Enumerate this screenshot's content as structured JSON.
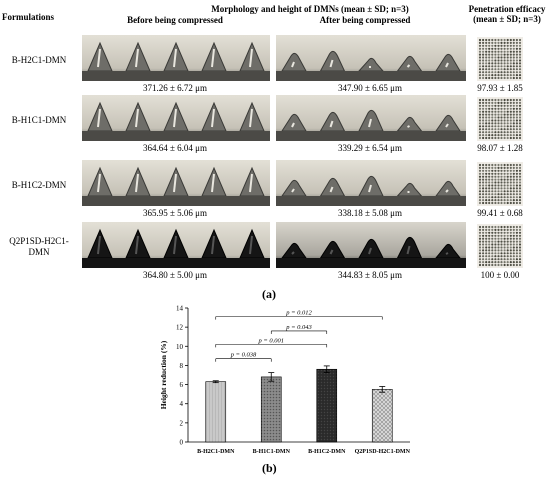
{
  "panel_a": {
    "formulations_header": "Formulations",
    "morph_header": "Morphology and height of DMNs (mean ± SD; n=3)",
    "before_header": "Before being compressed",
    "after_header": "After being compressed",
    "penetration_header_line1": "Penetration efficacy",
    "penetration_header_line2": "(mean ± SD; n=3)",
    "rows": [
      {
        "label_line1": "B-H2C1-DMN",
        "label_line2": "",
        "before": "371.26 ± 6.72 μm",
        "after": "347.90 ± 6.65 μm",
        "penetration": "97.93 ± 1.85"
      },
      {
        "label_line1": "B-H1C1-DMN",
        "label_line2": "",
        "before": "364.64 ± 6.04 μm",
        "after": "339.29 ± 6.54 μm",
        "penetration": "98.07 ± 1.28"
      },
      {
        "label_line1": "B-H1C2-DMN",
        "label_line2": "",
        "before": "365.95 ± 5.06 μm",
        "after": "338.18 ± 5.08 μm",
        "penetration": "99.41 ± 0.68"
      },
      {
        "label_line1": "Q2P1SD-H2C1-",
        "label_line2": "DMN",
        "before": "364.80 ± 5.00 μm",
        "after": "344.83 ± 8.05 μm",
        "penetration": "100 ± 0.00"
      }
    ],
    "label": "(a)"
  },
  "panel_b": {
    "label": "(b)"
  },
  "chart_data": {
    "type": "bar",
    "categories": [
      "B-H2C1-DMN",
      "B-H1C1-DMN",
      "B-H1C2-DMN",
      "Q2P1SD-H2C1-DMN"
    ],
    "values": [
      6.3,
      6.8,
      7.6,
      5.5
    ],
    "errors": [
      0.1,
      0.45,
      0.35,
      0.3
    ],
    "bar_colors": [
      "#c9c9c9",
      "#8c8c8c",
      "#2a2a2a",
      "#e2e2e2"
    ],
    "ylabel": "Height reduction (%)",
    "xlabel": "",
    "ylim": [
      0,
      14
    ],
    "yticks": [
      0,
      2,
      4,
      6,
      8,
      10,
      12,
      14
    ],
    "significance": [
      {
        "from": 0,
        "to": 1,
        "y": 8.7,
        "label": "p = 0.038"
      },
      {
        "from": 0,
        "to": 2,
        "y": 10.2,
        "label": "p = 0.001"
      },
      {
        "from": 1,
        "to": 2,
        "y": 11.6,
        "label": "p = 0.043"
      },
      {
        "from": 0,
        "to": 3,
        "y": 13.1,
        "label": "p = 0.012"
      }
    ],
    "grid": false
  }
}
